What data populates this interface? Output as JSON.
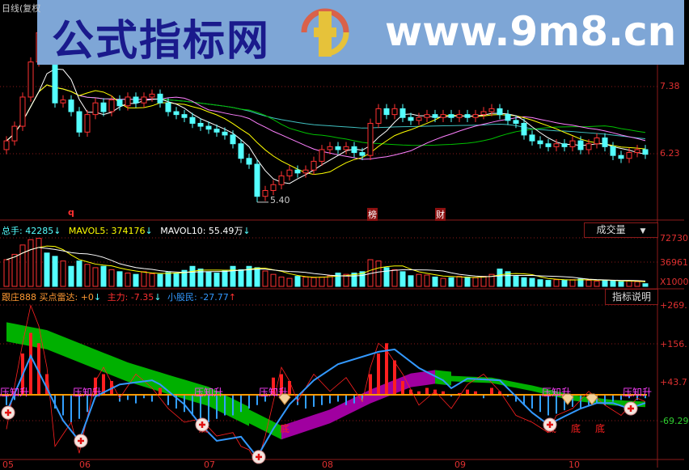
{
  "window": {
    "title": "日线(复权"
  },
  "banner": {
    "site_name": "公式指标网",
    "url": "www.9m8.cn",
    "logo_text": "www.9m8.cn"
  },
  "price_panel": {
    "axis_labels": [
      "7.38",
      "6.23"
    ],
    "low_label": "5.40",
    "markers": {
      "q": "q",
      "bang": "榜",
      "cai": "财"
    }
  },
  "volume_panel": {
    "total_label": "总手: 42285",
    "mavol5_label": "MAVOL5: 374176",
    "mavol10_label": "MAVOL10: 55.49万",
    "down_arrow": "↓",
    "selector_label": "成交量",
    "selector_arrow": "▼",
    "axis_labels": [
      "72730",
      "36961",
      "X1000"
    ]
  },
  "indicator_panel": {
    "name": "跟庄888",
    "buy_radar_label": "买点雷达: +0",
    "main_force_label": "主力: -7.35",
    "retail_label": "小股民: -27.77",
    "down_arrow": "↓",
    "up_arrow": "↑",
    "help_button": "指标说明",
    "axis_labels": [
      "+269.",
      "+156.",
      "+43.7",
      "-69.29"
    ],
    "signal_text": "压知升",
    "bottom_text": "底"
  },
  "x_axis": {
    "labels": [
      "05",
      "06",
      "07",
      "08",
      "09",
      "10"
    ]
  },
  "colors": {
    "up": "#ff3232",
    "down": "#54ffff",
    "ma5": "#ffffff",
    "ma10": "#ffff00",
    "ma20": "#ff80ff",
    "ma30": "#00c000",
    "ma60": "#40c0c0",
    "zero_line": "#ff9900",
    "blue_line": "#3399ff",
    "ribbon_fall": "#00b000",
    "ribbon_rise": "#a000a0",
    "grid": "#8b1a1a"
  },
  "chart_data": [
    {
      "type": "candlestick",
      "price_range": [
        5.2,
        8.7
      ],
      "open": [
        6.3,
        6.45,
        6.7,
        7.2,
        7.8,
        8.3,
        8.0,
        7.1,
        7.15,
        6.95,
        6.6,
        6.9,
        7.1,
        6.95,
        7.15,
        7.05,
        7.2,
        7.1,
        7.2,
        7.25,
        7.1,
        6.95,
        6.9,
        6.85,
        6.75,
        6.7,
        6.65,
        6.6,
        6.55,
        6.4,
        6.15,
        6.05,
        5.5,
        5.6,
        5.7,
        5.85,
        5.95,
        5.9,
        5.95,
        6.1,
        6.3,
        6.35,
        6.3,
        6.35,
        6.25,
        6.2,
        6.75,
        7.0,
        6.9,
        7.0,
        6.85,
        6.8,
        6.85,
        6.9,
        6.85,
        6.9,
        6.85,
        6.9,
        6.85,
        6.9,
        6.95,
        7.0,
        6.9,
        6.8,
        6.75,
        6.55,
        6.45,
        6.4,
        6.35,
        6.4,
        6.35,
        6.45,
        6.3,
        6.4,
        6.5,
        6.35,
        6.2,
        6.15,
        6.25,
        6.3
      ],
      "close": [
        6.45,
        6.7,
        7.2,
        7.8,
        8.3,
        8.0,
        7.1,
        7.15,
        6.95,
        6.6,
        6.9,
        7.1,
        6.95,
        7.15,
        7.05,
        7.2,
        7.1,
        7.2,
        7.25,
        7.1,
        6.95,
        6.9,
        6.85,
        6.75,
        6.7,
        6.65,
        6.6,
        6.55,
        6.4,
        6.15,
        6.05,
        5.5,
        5.6,
        5.7,
        5.85,
        5.95,
        5.9,
        5.95,
        6.1,
        6.3,
        6.35,
        6.3,
        6.35,
        6.25,
        6.2,
        6.75,
        7.0,
        6.9,
        7.0,
        6.85,
        6.8,
        6.85,
        6.9,
        6.85,
        6.9,
        6.85,
        6.9,
        6.85,
        6.9,
        6.95,
        7.0,
        6.9,
        6.8,
        6.75,
        6.55,
        6.45,
        6.4,
        6.35,
        6.4,
        6.35,
        6.45,
        6.3,
        6.4,
        6.5,
        6.35,
        6.2,
        6.15,
        6.25,
        6.3,
        6.22
      ],
      "low_point": 5.4
    },
    {
      "type": "bar",
      "name": "volume",
      "ylim": [
        0,
        72730
      ],
      "values": [
        40000,
        48000,
        62000,
        70000,
        72000,
        50000,
        45000,
        38000,
        30000,
        38000,
        33000,
        28000,
        30000,
        25000,
        22000,
        20000,
        18000,
        22000,
        19000,
        18000,
        21000,
        20000,
        24000,
        30000,
        26000,
        22000,
        20000,
        23000,
        30000,
        25000,
        30000,
        28000,
        23000,
        18000,
        14000,
        12000,
        15000,
        14000,
        13000,
        14000,
        16000,
        20000,
        18000,
        20000,
        22000,
        40000,
        38000,
        28000,
        25000,
        22000,
        16000,
        18000,
        17000,
        14000,
        12000,
        13000,
        15000,
        14000,
        13000,
        15000,
        18000,
        26000,
        22000,
        15000,
        13000,
        12000,
        10000,
        9000,
        10000,
        9000,
        10000,
        11000,
        9000,
        8000,
        9000,
        8000,
        7000,
        8000,
        7000,
        4000
      ]
    },
    {
      "type": "line",
      "name": "跟庄888",
      "ylim": [
        -190,
        290
      ],
      "histogram": [
        -30,
        -15,
        120,
        180,
        150,
        60,
        -40,
        -60,
        -80,
        -70,
        -50,
        50,
        60,
        40,
        -20,
        -15,
        -25,
        -10,
        -20,
        20,
        -30,
        -40,
        -50,
        -60,
        -70,
        -80,
        -70,
        -60,
        -60,
        -50,
        -40,
        -30,
        -20,
        50,
        60,
        40,
        -30,
        -40,
        -35,
        -30,
        -25,
        -20,
        -30,
        -25,
        -20,
        60,
        120,
        150,
        100,
        40,
        15,
        10,
        20,
        15,
        10,
        -5,
        5,
        15,
        10,
        -10,
        20,
        10,
        -5,
        -20,
        -30,
        -40,
        -50,
        -60,
        -55,
        -45,
        -35,
        -40,
        -30,
        -25,
        -30,
        -20,
        -15,
        -10,
        -15,
        -10
      ],
      "blue_line": [
        [
          0,
          -52
        ],
        [
          3,
          113
        ],
        [
          4,
          66
        ],
        [
          7,
          -75
        ],
        [
          9,
          -134
        ],
        [
          11,
          -5
        ],
        [
          14,
          30
        ],
        [
          18,
          42
        ],
        [
          19,
          30
        ],
        [
          22,
          -28
        ],
        [
          24,
          -87
        ],
        [
          26,
          -134
        ],
        [
          29,
          -122
        ],
        [
          31,
          -181
        ],
        [
          33,
          -99
        ],
        [
          35,
          -28
        ],
        [
          38,
          42
        ],
        [
          41,
          89
        ],
        [
          46,
          125
        ],
        [
          48,
          132
        ],
        [
          51,
          78
        ],
        [
          54,
          42
        ],
        [
          55,
          19
        ],
        [
          57,
          47
        ],
        [
          61,
          42
        ],
        [
          63,
          -5
        ],
        [
          65,
          -52
        ],
        [
          67,
          -87
        ],
        [
          69,
          -63
        ],
        [
          71,
          -40
        ],
        [
          73,
          -24
        ],
        [
          75,
          -24
        ],
        [
          77,
          -40
        ],
        [
          79,
          -24
        ]
      ],
      "red_line": [
        [
          0,
          -100
        ],
        [
          2,
          150
        ],
        [
          3,
          260
        ],
        [
          4,
          200
        ],
        [
          5,
          80
        ],
        [
          6,
          -150
        ],
        [
          8,
          -80
        ],
        [
          9,
          -170
        ],
        [
          11,
          40
        ],
        [
          12,
          80
        ],
        [
          14,
          -10
        ],
        [
          16,
          60
        ],
        [
          18,
          20
        ],
        [
          20,
          -40
        ],
        [
          22,
          -80
        ],
        [
          24,
          -70
        ],
        [
          26,
          -120
        ],
        [
          28,
          -110
        ],
        [
          29,
          -150
        ],
        [
          30,
          -160
        ],
        [
          31,
          -200
        ],
        [
          32,
          -120
        ],
        [
          34,
          80
        ],
        [
          35,
          40
        ],
        [
          36,
          -20
        ],
        [
          38,
          60
        ],
        [
          40,
          10
        ],
        [
          42,
          50
        ],
        [
          44,
          -20
        ],
        [
          45,
          80
        ],
        [
          46,
          150
        ],
        [
          47,
          130
        ],
        [
          49,
          60
        ],
        [
          51,
          -30
        ],
        [
          53,
          10
        ],
        [
          55,
          -40
        ],
        [
          57,
          30
        ],
        [
          59,
          60
        ],
        [
          61,
          10
        ],
        [
          63,
          -60
        ],
        [
          65,
          -80
        ],
        [
          67,
          -110
        ],
        [
          68,
          -60
        ],
        [
          70,
          -40
        ],
        [
          72,
          10
        ],
        [
          74,
          -30
        ],
        [
          76,
          -60
        ],
        [
          78,
          -10
        ],
        [
          79,
          -20
        ]
      ],
      "ribbon_center": [
        [
          0,
          183
        ],
        [
          5,
          160
        ],
        [
          10,
          113
        ],
        [
          15,
          66
        ],
        [
          20,
          30
        ],
        [
          25,
          -5
        ],
        [
          30,
          -63
        ],
        [
          34,
          -110
        ],
        [
          40,
          -63
        ],
        [
          45,
          -5
        ],
        [
          50,
          42
        ],
        [
          53,
          52
        ],
        [
          55,
          47
        ],
        [
          60,
          42
        ],
        [
          65,
          19
        ],
        [
          70,
          -9
        ],
        [
          75,
          -23
        ],
        [
          79,
          -28
        ]
      ],
      "ribbon_rising_range": [
        34,
        53
      ],
      "buy_signals": [
        0,
        9,
        24,
        31,
        67,
        77
      ],
      "diamond_signals": [
        34,
        69,
        72
      ],
      "signal_text_at": [
        0,
        9,
        24,
        32,
        67,
        77
      ],
      "bottom_text_at": [
        24,
        34,
        67,
        70,
        73
      ]
    }
  ]
}
